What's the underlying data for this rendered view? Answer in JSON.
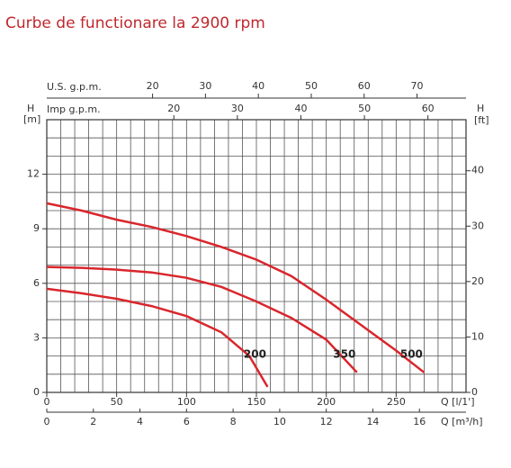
{
  "chart_data": {
    "type": "line",
    "title": "Curbe de functionare la 2900 rpm",
    "title_color": "#c0282d",
    "x_label": "Q [l/1']",
    "xlim": [
      0,
      300
    ],
    "xticks": [
      0,
      50,
      100,
      150,
      200,
      250
    ],
    "x_minor_ticks": [
      0,
      10,
      20,
      30,
      40,
      50,
      60,
      70,
      80,
      90,
      100,
      110,
      120,
      130,
      140,
      150,
      160,
      170,
      180,
      190,
      200,
      210,
      220,
      230,
      240,
      250,
      260,
      270,
      280,
      290,
      300
    ],
    "x2_label": "Q [m³/h]",
    "x2lim": [
      0,
      18
    ],
    "x2ticks": [
      0,
      2,
      4,
      6,
      8,
      10,
      12,
      14,
      16
    ],
    "x3_label": "U.S. g.p.m.",
    "x3lim": [
      0,
      79.26
    ],
    "x3ticks": [
      20,
      30,
      40,
      50,
      60,
      70
    ],
    "x4_label": "Imp g.p.m.",
    "x4lim": [
      0,
      65.99
    ],
    "x4ticks": [
      20,
      30,
      40,
      50,
      60
    ],
    "y_label": "H",
    "y_unit": "[m]",
    "ylim": [
      0,
      15
    ],
    "yticks": [
      0,
      3,
      6,
      9,
      12
    ],
    "y_minor_ticks": [
      0,
      1,
      2,
      3,
      4,
      5,
      6,
      7,
      8,
      9,
      10,
      11,
      12,
      13,
      14,
      15
    ],
    "y2_label": "H",
    "y2_unit": "[ft]",
    "y2lim": [
      0,
      49.21
    ],
    "y2ticks": [
      0,
      10,
      20,
      30,
      40
    ],
    "grid": true,
    "series": [
      {
        "name": "200",
        "color": "#d9262c",
        "x": [
          0,
          25,
          50,
          75,
          100,
          125,
          145,
          158
        ],
        "values": [
          5.7,
          5.45,
          5.15,
          4.75,
          4.2,
          3.3,
          2.0,
          0.3
        ]
      },
      {
        "name": "350",
        "color": "#d9262c",
        "x": [
          0,
          25,
          50,
          75,
          100,
          125,
          150,
          175,
          200,
          222
        ],
        "values": [
          6.9,
          6.85,
          6.75,
          6.6,
          6.3,
          5.8,
          5.0,
          4.1,
          2.9,
          1.1
        ]
      },
      {
        "name": "500",
        "color": "#d9262c",
        "x": [
          0,
          25,
          50,
          75,
          100,
          125,
          150,
          175,
          200,
          225,
          250,
          270
        ],
        "values": [
          10.4,
          10.0,
          9.5,
          9.1,
          8.6,
          8.0,
          7.3,
          6.4,
          5.1,
          3.7,
          2.3,
          1.1
        ]
      }
    ]
  }
}
